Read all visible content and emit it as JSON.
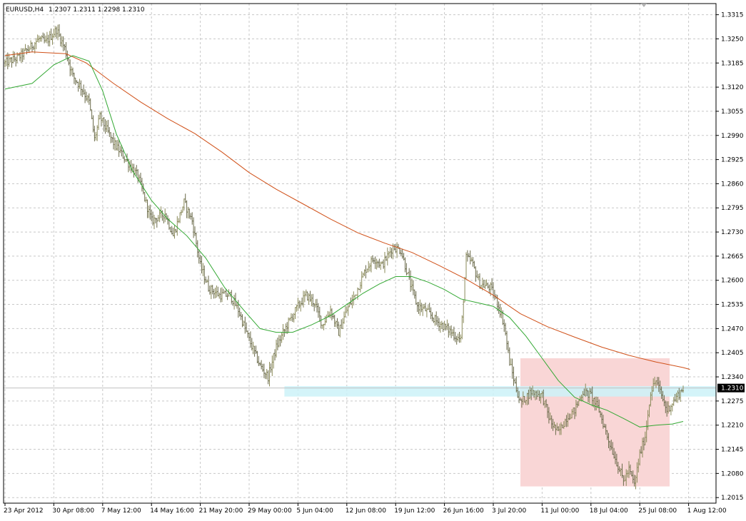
{
  "header": {
    "symbol": "EURUSD,H4",
    "ohlc": "1.2307 1.2311 1.2298 1.2310"
  },
  "current_price_label": "1.2310",
  "colors": {
    "background": "#ffffff",
    "grid": "#c8c8c8",
    "bar_up": "#8a8a5a",
    "bar_down": "#6a6a4a",
    "ma_fast": "#33a833",
    "ma_slow": "#d05018",
    "range_box_fill": "#f9d6d6",
    "support_band_fill": "#cdf2f8",
    "price_line": "#c0c0c0",
    "price_tag_bg": "#000000"
  },
  "chart_data": {
    "type": "line",
    "title": "EURUSD,H4",
    "y_tick_labels": [
      "1.3315",
      "1.3250",
      "1.3185",
      "1.3120",
      "1.3055",
      "1.2990",
      "1.2925",
      "1.2860",
      "1.2795",
      "1.2730",
      "1.2665",
      "1.2600",
      "1.2535",
      "1.2470",
      "1.2405",
      "1.2340",
      "1.2275",
      "1.2210",
      "1.2145",
      "1.2080",
      "1.2015"
    ],
    "x_tick_labels": [
      "23 Apr 2012",
      "30 Apr 08:00",
      "7 May 12:00",
      "14 May 16:00",
      "21 May 20:00",
      "29 May 00:00",
      "5 Jun 04:00",
      "12 Jun 08:00",
      "19 Jun 12:00",
      "26 Jun 16:00",
      "3 Jul 20:00",
      "11 Jul 00:00",
      "18 Jul 04:00",
      "25 Jul 08:00",
      "1 Aug 12:00"
    ],
    "x_tick_index": [
      0,
      36,
      72,
      108,
      144,
      180,
      216,
      252,
      288,
      324,
      360,
      396,
      432,
      468,
      504
    ],
    "ylim": [
      1.2,
      1.3345
    ],
    "xlim": [
      0,
      524
    ],
    "grid": true,
    "price_anchors": [
      [
        0,
        1.3185
      ],
      [
        10,
        1.32
      ],
      [
        18,
        1.3225
      ],
      [
        25,
        1.325
      ],
      [
        30,
        1.324
      ],
      [
        38,
        1.3275
      ],
      [
        44,
        1.3225
      ],
      [
        50,
        1.315
      ],
      [
        56,
        1.312
      ],
      [
        62,
        1.308
      ],
      [
        66,
        1.298
      ],
      [
        70,
        1.304
      ],
      [
        80,
        1.297
      ],
      [
        90,
        1.292
      ],
      [
        98,
        1.288
      ],
      [
        108,
        1.276
      ],
      [
        118,
        1.278
      ],
      [
        124,
        1.272
      ],
      [
        132,
        1.281
      ],
      [
        138,
        1.276
      ],
      [
        144,
        1.264
      ],
      [
        150,
        1.258
      ],
      [
        158,
        1.256
      ],
      [
        166,
        1.256
      ],
      [
        172,
        1.252
      ],
      [
        180,
        1.244
      ],
      [
        188,
        1.237
      ],
      [
        194,
        1.234
      ],
      [
        200,
        1.242
      ],
      [
        208,
        1.248
      ],
      [
        216,
        1.253
      ],
      [
        222,
        1.256
      ],
      [
        228,
        1.254
      ],
      [
        234,
        1.248
      ],
      [
        240,
        1.252
      ],
      [
        246,
        1.246
      ],
      [
        252,
        1.252
      ],
      [
        258,
        1.256
      ],
      [
        266,
        1.263
      ],
      [
        272,
        1.266
      ],
      [
        278,
        1.264
      ],
      [
        286,
        1.269
      ],
      [
        292,
        1.268
      ],
      [
        298,
        1.26
      ],
      [
        304,
        1.253
      ],
      [
        310,
        1.252
      ],
      [
        318,
        1.249
      ],
      [
        326,
        1.247
      ],
      [
        332,
        1.245
      ],
      [
        336,
        1.244
      ],
      [
        340,
        1.266
      ],
      [
        344,
        1.265
      ],
      [
        350,
        1.259
      ],
      [
        358,
        1.258
      ],
      [
        364,
        1.253
      ],
      [
        368,
        1.248
      ],
      [
        372,
        1.238
      ],
      [
        376,
        1.232
      ],
      [
        380,
        1.227
      ],
      [
        388,
        1.23
      ],
      [
        396,
        1.229
      ],
      [
        402,
        1.222
      ],
      [
        408,
        1.219
      ],
      [
        414,
        1.223
      ],
      [
        420,
        1.225
      ],
      [
        426,
        1.23
      ],
      [
        432,
        1.229
      ],
      [
        438,
        1.225
      ],
      [
        444,
        1.218
      ],
      [
        450,
        1.212
      ],
      [
        456,
        1.206
      ],
      [
        460,
        1.209
      ],
      [
        464,
        1.205
      ],
      [
        468,
        1.213
      ],
      [
        472,
        1.218
      ],
      [
        476,
        1.23
      ],
      [
        480,
        1.233
      ],
      [
        484,
        1.229
      ],
      [
        488,
        1.225
      ],
      [
        494,
        1.228
      ],
      [
        500,
        1.231
      ]
    ],
    "series": [
      {
        "values": [
          [
            0,
            1.3205
          ],
          [
            20,
            1.3215
          ],
          [
            45,
            1.321
          ],
          [
            60,
            1.3185
          ],
          [
            80,
            1.313
          ],
          [
            100,
            1.308
          ],
          [
            120,
            1.3035
          ],
          [
            140,
            1.2995
          ],
          [
            160,
            1.2945
          ],
          [
            180,
            1.289
          ],
          [
            200,
            1.2845
          ],
          [
            220,
            1.2805
          ],
          [
            240,
            1.2765
          ],
          [
            260,
            1.2728
          ],
          [
            280,
            1.27
          ],
          [
            300,
            1.2675
          ],
          [
            320,
            1.264
          ],
          [
            340,
            1.2603
          ],
          [
            360,
            1.256
          ],
          [
            380,
            1.251
          ],
          [
            400,
            1.2475
          ],
          [
            420,
            1.2447
          ],
          [
            440,
            1.242
          ],
          [
            460,
            1.2398
          ],
          [
            480,
            1.238
          ],
          [
            500,
            1.2365
          ],
          [
            505,
            1.236
          ]
        ]
      },
      {
        "values": [
          [
            0,
            1.3115
          ],
          [
            20,
            1.313
          ],
          [
            36,
            1.318
          ],
          [
            50,
            1.3205
          ],
          [
            62,
            1.319
          ],
          [
            72,
            1.311
          ],
          [
            82,
            1.2995
          ],
          [
            94,
            1.2895
          ],
          [
            108,
            1.2815
          ],
          [
            120,
            1.2765
          ],
          [
            134,
            1.272
          ],
          [
            148,
            1.266
          ],
          [
            162,
            1.258
          ],
          [
            176,
            1.252
          ],
          [
            188,
            1.247
          ],
          [
            200,
            1.246
          ],
          [
            212,
            1.246
          ],
          [
            226,
            1.248
          ],
          [
            240,
            1.2505
          ],
          [
            252,
            1.2535
          ],
          [
            264,
            1.2565
          ],
          [
            276,
            1.259
          ],
          [
            288,
            1.261
          ],
          [
            300,
            1.261
          ],
          [
            312,
            1.2595
          ],
          [
            324,
            1.2575
          ],
          [
            336,
            1.255
          ],
          [
            348,
            1.254
          ],
          [
            360,
            1.253
          ],
          [
            372,
            1.25
          ],
          [
            384,
            1.245
          ],
          [
            396,
            1.239
          ],
          [
            408,
            1.233
          ],
          [
            420,
            1.2285
          ],
          [
            432,
            1.2265
          ],
          [
            444,
            1.225
          ],
          [
            456,
            1.2228
          ],
          [
            468,
            1.2205
          ],
          [
            480,
            1.221
          ],
          [
            492,
            1.2213
          ],
          [
            500,
            1.222
          ]
        ]
      }
    ],
    "range_box": {
      "x0": 380,
      "x1": 490,
      "y0": 1.2045,
      "y1": 1.239
    },
    "support_band": {
      "x0": 206,
      "x1": 524,
      "y0": 1.2287,
      "y1": 1.2315
    },
    "current_price": 1.231
  }
}
